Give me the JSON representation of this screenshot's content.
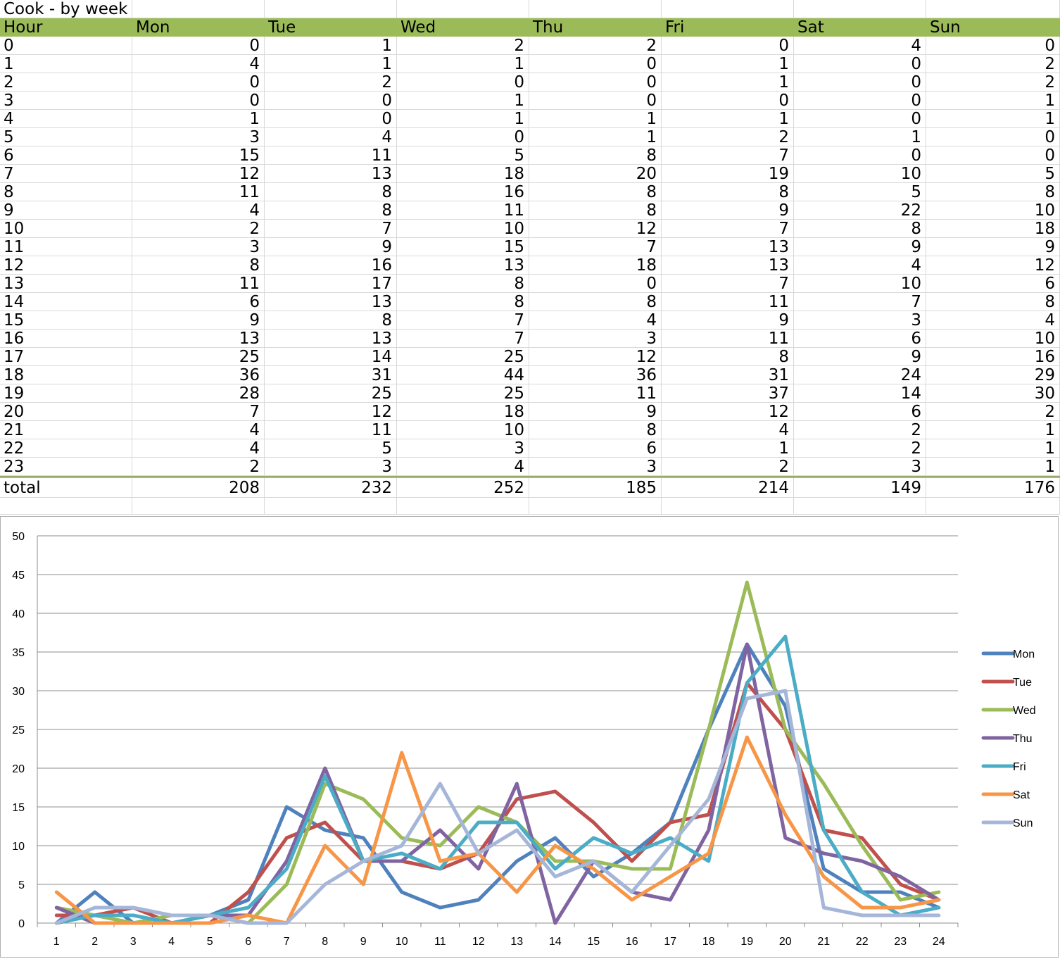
{
  "sheet": {
    "title": "Cook - by week",
    "headers": [
      "Hour",
      "Mon",
      "Tue",
      "Wed",
      "Thu",
      "Fri",
      "Sat",
      "Sun"
    ],
    "rows": [
      [
        "0",
        "0",
        "1",
        "2",
        "2",
        "0",
        "4",
        "0"
      ],
      [
        "1",
        "4",
        "1",
        "1",
        "0",
        "1",
        "0",
        "2"
      ],
      [
        "2",
        "0",
        "2",
        "0",
        "0",
        "1",
        "0",
        "2"
      ],
      [
        "3",
        "0",
        "0",
        "1",
        "0",
        "0",
        "0",
        "1"
      ],
      [
        "4",
        "1",
        "0",
        "1",
        "1",
        "1",
        "0",
        "1"
      ],
      [
        "5",
        "3",
        "4",
        "0",
        "1",
        "2",
        "1",
        "0"
      ],
      [
        "6",
        "15",
        "11",
        "5",
        "8",
        "7",
        "0",
        "0"
      ],
      [
        "7",
        "12",
        "13",
        "18",
        "20",
        "19",
        "10",
        "5"
      ],
      [
        "8",
        "11",
        "8",
        "16",
        "8",
        "8",
        "5",
        "8"
      ],
      [
        "9",
        "4",
        "8",
        "11",
        "8",
        "9",
        "22",
        "10"
      ],
      [
        "10",
        "2",
        "7",
        "10",
        "12",
        "7",
        "8",
        "18"
      ],
      [
        "11",
        "3",
        "9",
        "15",
        "7",
        "13",
        "9",
        "9"
      ],
      [
        "12",
        "8",
        "16",
        "13",
        "18",
        "13",
        "4",
        "12"
      ],
      [
        "13",
        "11",
        "17",
        "8",
        "0",
        "7",
        "10",
        "6"
      ],
      [
        "14",
        "6",
        "13",
        "8",
        "8",
        "11",
        "7",
        "8"
      ],
      [
        "15",
        "9",
        "8",
        "7",
        "4",
        "9",
        "3",
        "4"
      ],
      [
        "16",
        "13",
        "13",
        "7",
        "3",
        "11",
        "6",
        "10"
      ],
      [
        "17",
        "25",
        "14",
        "25",
        "12",
        "8",
        "9",
        "16"
      ],
      [
        "18",
        "36",
        "31",
        "44",
        "36",
        "31",
        "24",
        "29"
      ],
      [
        "19",
        "28",
        "25",
        "25",
        "11",
        "37",
        "14",
        "30"
      ],
      [
        "20",
        "7",
        "12",
        "18",
        "9",
        "12",
        "6",
        "2"
      ],
      [
        "21",
        "4",
        "11",
        "10",
        "8",
        "4",
        "2",
        "1"
      ],
      [
        "22",
        "4",
        "5",
        "3",
        "6",
        "1",
        "2",
        "1"
      ],
      [
        "23",
        "2",
        "3",
        "4",
        "3",
        "2",
        "3",
        "1"
      ]
    ],
    "total": [
      "total",
      "208",
      "232",
      "252",
      "185",
      "214",
      "149",
      "176"
    ]
  },
  "colors": {
    "header_bg": "#9bbb59",
    "grid": "#d9d9d9",
    "total_border": "#77933c"
  },
  "chart_data": {
    "type": "line",
    "x": [
      1,
      2,
      3,
      4,
      5,
      6,
      7,
      8,
      9,
      10,
      11,
      12,
      13,
      14,
      15,
      16,
      17,
      18,
      19,
      20,
      21,
      22,
      23,
      24
    ],
    "ylim": [
      0,
      50
    ],
    "yticks": [
      0,
      5,
      10,
      15,
      20,
      25,
      30,
      35,
      40,
      45,
      50
    ],
    "grid": true,
    "legend": "right",
    "series": [
      {
        "name": "Mon",
        "color": "#4f81bd",
        "values": [
          0,
          4,
          0,
          0,
          1,
          3,
          15,
          12,
          11,
          4,
          2,
          3,
          8,
          11,
          6,
          9,
          13,
          25,
          36,
          28,
          7,
          4,
          4,
          2
        ]
      },
      {
        "name": "Tue",
        "color": "#c0504d",
        "values": [
          1,
          1,
          2,
          0,
          0,
          4,
          11,
          13,
          8,
          8,
          7,
          9,
          16,
          17,
          13,
          8,
          13,
          14,
          31,
          25,
          12,
          11,
          5,
          3
        ]
      },
      {
        "name": "Wed",
        "color": "#9bbb59",
        "values": [
          2,
          1,
          0,
          1,
          1,
          0,
          5,
          18,
          16,
          11,
          10,
          15,
          13,
          8,
          8,
          7,
          7,
          25,
          44,
          25,
          18,
          10,
          3,
          4
        ]
      },
      {
        "name": "Thu",
        "color": "#8064a2",
        "values": [
          2,
          0,
          0,
          0,
          1,
          1,
          8,
          20,
          8,
          8,
          12,
          7,
          18,
          0,
          8,
          4,
          3,
          12,
          36,
          11,
          9,
          8,
          6,
          3
        ]
      },
      {
        "name": "Fri",
        "color": "#4bacc6",
        "values": [
          0,
          1,
          1,
          0,
          1,
          2,
          7,
          19,
          8,
          9,
          7,
          13,
          13,
          7,
          11,
          9,
          11,
          8,
          31,
          37,
          12,
          4,
          1,
          2
        ]
      },
      {
        "name": "Sat",
        "color": "#f79646",
        "values": [
          4,
          0,
          0,
          0,
          0,
          1,
          0,
          10,
          5,
          22,
          8,
          9,
          4,
          10,
          7,
          3,
          6,
          9,
          24,
          14,
          6,
          2,
          2,
          3
        ]
      },
      {
        "name": "Sun",
        "color": "#a5b6d9",
        "values": [
          0,
          2,
          2,
          1,
          1,
          0,
          0,
          5,
          8,
          10,
          18,
          9,
          12,
          6,
          8,
          4,
          10,
          16,
          29,
          30,
          2,
          1,
          1,
          1
        ]
      }
    ]
  }
}
